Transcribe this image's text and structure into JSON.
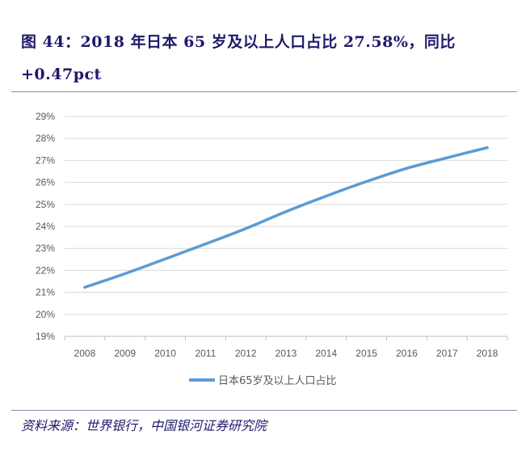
{
  "figure": {
    "title": "图 44：2018 年日本 65 岁及以上人口占比 27.58%，同比+0.47pct",
    "source": "资料来源：世界银行，中国银河证券研究院"
  },
  "colors": {
    "title": "#1f1a6b",
    "series_line": "#5b9bd5",
    "grid": "#d9d9d9",
    "axis_text": "#595959"
  },
  "chart_data": {
    "type": "line",
    "title": "",
    "xlabel": "",
    "ylabel": "",
    "x": [
      "2008",
      "2009",
      "2010",
      "2011",
      "2012",
      "2013",
      "2014",
      "2015",
      "2016",
      "2017",
      "2018"
    ],
    "series": [
      {
        "name": "日本65岁及以上人口占比",
        "values": [
          21.23,
          21.85,
          22.52,
          23.2,
          23.9,
          24.67,
          25.38,
          26.04,
          26.64,
          27.12,
          27.58
        ]
      }
    ],
    "ylim": [
      19,
      29
    ],
    "yticks": [
      19,
      20,
      21,
      22,
      23,
      24,
      25,
      26,
      27,
      28,
      29
    ],
    "ytick_format": "%",
    "grid": "horizontal",
    "legend": "bottom"
  }
}
